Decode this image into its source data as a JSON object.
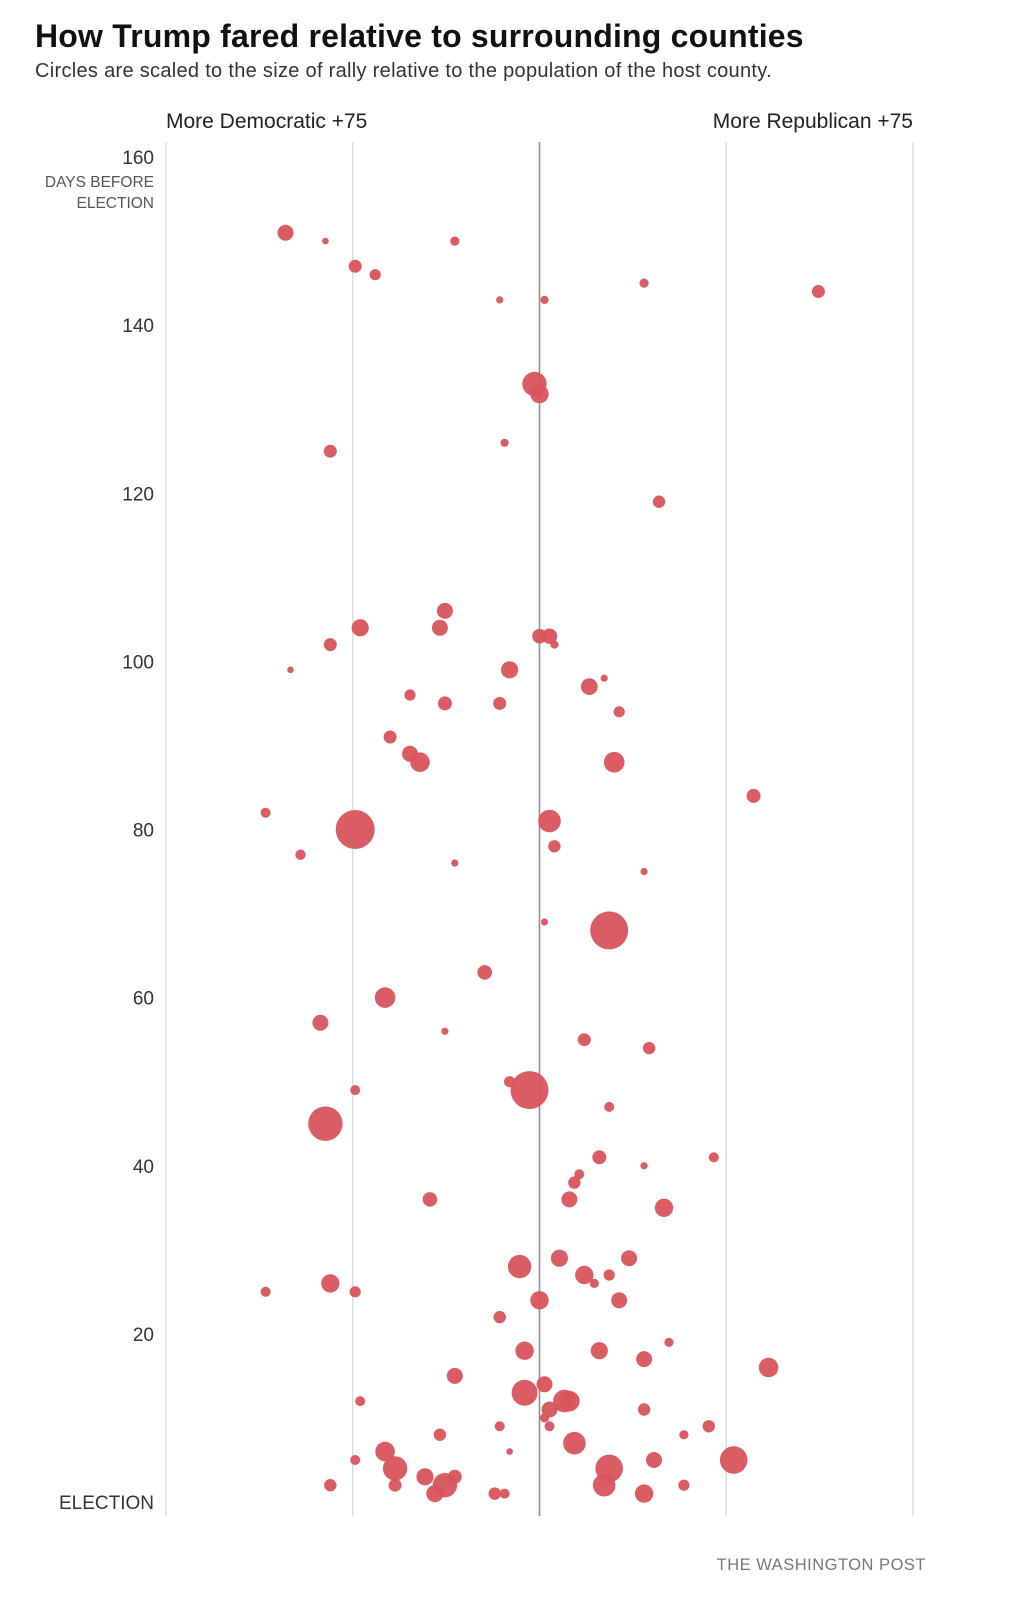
{
  "chart_data": {
    "type": "scatter",
    "title": "How Trump fared relative to surrounding counties",
    "subtitle": "Circles are scaled to the size of rally relative to the population of the host county.",
    "x_left_label": "More Democratic +75",
    "x_right_label": "More Republican +75",
    "xlim": [
      -75,
      75
    ],
    "x_gridlines": [
      -75,
      -37.5,
      0,
      37.5,
      75
    ],
    "ylim": [
      0,
      160
    ],
    "y_ticks": [
      {
        "value": 160,
        "label": "160"
      },
      {
        "value": 140,
        "label": "140"
      },
      {
        "value": 120,
        "label": "120"
      },
      {
        "value": 100,
        "label": "100"
      },
      {
        "value": 80,
        "label": "80"
      },
      {
        "value": 60,
        "label": "60"
      },
      {
        "value": 40,
        "label": "40"
      },
      {
        "value": 20,
        "label": "20"
      },
      {
        "value": 0,
        "label": "ELECTION"
      }
    ],
    "y_axis_caption": [
      "DAYS BEFORE",
      "ELECTION"
    ],
    "color": "#d9545c",
    "points": [
      {
        "x": -51,
        "y": 151,
        "s": 3
      },
      {
        "x": -43,
        "y": 150,
        "s": 0.5
      },
      {
        "x": -17,
        "y": 150,
        "s": 1
      },
      {
        "x": -37,
        "y": 147,
        "s": 2
      },
      {
        "x": -33,
        "y": 146,
        "s": 1.5
      },
      {
        "x": 21,
        "y": 145,
        "s": 1
      },
      {
        "x": 56,
        "y": 144,
        "s": 2
      },
      {
        "x": -8,
        "y": 143,
        "s": 0.6
      },
      {
        "x": 1,
        "y": 143,
        "s": 0.8
      },
      {
        "x": -1,
        "y": 133,
        "s": 7
      },
      {
        "x": 0,
        "y": 131.8,
        "s": 4
      },
      {
        "x": -7,
        "y": 126,
        "s": 0.8
      },
      {
        "x": -42,
        "y": 125,
        "s": 2
      },
      {
        "x": 24,
        "y": 119,
        "s": 1.8
      },
      {
        "x": -19,
        "y": 106,
        "s": 3
      },
      {
        "x": -36,
        "y": 104,
        "s": 3.5
      },
      {
        "x": -20,
        "y": 104,
        "s": 3
      },
      {
        "x": -42,
        "y": 102,
        "s": 2
      },
      {
        "x": 0,
        "y": 103,
        "s": 2.5
      },
      {
        "x": 2,
        "y": 103,
        "s": 2.8
      },
      {
        "x": 3,
        "y": 102,
        "s": 0.8
      },
      {
        "x": -6,
        "y": 99,
        "s": 3.5
      },
      {
        "x": -50,
        "y": 99,
        "s": 0.5
      },
      {
        "x": 13,
        "y": 98,
        "s": 0.6
      },
      {
        "x": 10,
        "y": 97,
        "s": 3.3
      },
      {
        "x": -26,
        "y": 96,
        "s": 1.5
      },
      {
        "x": -19,
        "y": 95,
        "s": 2.3
      },
      {
        "x": -8,
        "y": 95,
        "s": 2
      },
      {
        "x": 16,
        "y": 94,
        "s": 1.5
      },
      {
        "x": -30,
        "y": 91,
        "s": 2
      },
      {
        "x": -26,
        "y": 89,
        "s": 3
      },
      {
        "x": -24,
        "y": 88,
        "s": 4.5
      },
      {
        "x": 15,
        "y": 88,
        "s": 5
      },
      {
        "x": 43,
        "y": 84,
        "s": 2.3
      },
      {
        "x": -55,
        "y": 82,
        "s": 1.2
      },
      {
        "x": 2,
        "y": 81,
        "s": 6
      },
      {
        "x": -37,
        "y": 80,
        "s": 18
      },
      {
        "x": 3,
        "y": 78,
        "s": 1.8
      },
      {
        "x": -48,
        "y": 77,
        "s": 1.3
      },
      {
        "x": -17,
        "y": 76,
        "s": 0.6
      },
      {
        "x": 21,
        "y": 75,
        "s": 0.6
      },
      {
        "x": 1,
        "y": 69,
        "s": 0.6
      },
      {
        "x": 14,
        "y": 68,
        "s": 17
      },
      {
        "x": -11,
        "y": 63,
        "s": 2.5
      },
      {
        "x": -31,
        "y": 60,
        "s": 5
      },
      {
        "x": -44,
        "y": 57,
        "s": 3
      },
      {
        "x": -19,
        "y": 56,
        "s": 0.6
      },
      {
        "x": 9,
        "y": 55,
        "s": 2
      },
      {
        "x": 22,
        "y": 54,
        "s": 1.8
      },
      {
        "x": -6,
        "y": 50,
        "s": 1.5
      },
      {
        "x": -2,
        "y": 49,
        "s": 17
      },
      {
        "x": -37,
        "y": 49,
        "s": 1.2
      },
      {
        "x": 14,
        "y": 47,
        "s": 1.2
      },
      {
        "x": -43,
        "y": 45,
        "s": 14
      },
      {
        "x": 12,
        "y": 41,
        "s": 2.3
      },
      {
        "x": 21,
        "y": 40,
        "s": 0.6
      },
      {
        "x": 35,
        "y": 41,
        "s": 1.2
      },
      {
        "x": 8,
        "y": 39,
        "s": 1.2
      },
      {
        "x": 7,
        "y": 38,
        "s": 1.8
      },
      {
        "x": 6,
        "y": 36,
        "s": 3
      },
      {
        "x": -22,
        "y": 36,
        "s": 2.5
      },
      {
        "x": 25,
        "y": 35,
        "s": 4
      },
      {
        "x": 4,
        "y": 29,
        "s": 3.5
      },
      {
        "x": 18,
        "y": 29,
        "s": 3
      },
      {
        "x": -4,
        "y": 28,
        "s": 6.5
      },
      {
        "x": 9,
        "y": 27,
        "s": 4
      },
      {
        "x": 14,
        "y": 27,
        "s": 1.5
      },
      {
        "x": 11,
        "y": 26,
        "s": 1
      },
      {
        "x": -42,
        "y": 26,
        "s": 4
      },
      {
        "x": -55,
        "y": 25,
        "s": 1.2
      },
      {
        "x": -37,
        "y": 25,
        "s": 1.5
      },
      {
        "x": 0,
        "y": 24,
        "s": 4
      },
      {
        "x": 16,
        "y": 24,
        "s": 3
      },
      {
        "x": -8,
        "y": 22,
        "s": 1.8
      },
      {
        "x": 26,
        "y": 19,
        "s": 1
      },
      {
        "x": -3,
        "y": 18,
        "s": 4
      },
      {
        "x": 12,
        "y": 18,
        "s": 3.5
      },
      {
        "x": 21,
        "y": 17,
        "s": 3
      },
      {
        "x": 46,
        "y": 16,
        "s": 4.5
      },
      {
        "x": -17,
        "y": 15,
        "s": 3
      },
      {
        "x": 1,
        "y": 14,
        "s": 3
      },
      {
        "x": -3,
        "y": 13,
        "s": 8
      },
      {
        "x": -36,
        "y": 12,
        "s": 1.2
      },
      {
        "x": 5,
        "y": 12,
        "s": 6
      },
      {
        "x": 6,
        "y": 12,
        "s": 5
      },
      {
        "x": 2,
        "y": 11,
        "s": 3
      },
      {
        "x": 21,
        "y": 11,
        "s": 1.8
      },
      {
        "x": 1,
        "y": 10,
        "s": 1
      },
      {
        "x": -8,
        "y": 9,
        "s": 1.2
      },
      {
        "x": 2,
        "y": 9,
        "s": 1.2
      },
      {
        "x": 34,
        "y": 9,
        "s": 1.8
      },
      {
        "x": -20,
        "y": 8,
        "s": 1.8
      },
      {
        "x": 29,
        "y": 8,
        "s": 1
      },
      {
        "x": 7,
        "y": 7,
        "s": 6
      },
      {
        "x": -31,
        "y": 6,
        "s": 4.5
      },
      {
        "x": -6,
        "y": 6,
        "s": 0.5
      },
      {
        "x": -37,
        "y": 5,
        "s": 1.2
      },
      {
        "x": 23,
        "y": 5,
        "s": 3
      },
      {
        "x": 39,
        "y": 5,
        "s": 9
      },
      {
        "x": -29,
        "y": 4,
        "s": 7
      },
      {
        "x": 14,
        "y": 4,
        "s": 9
      },
      {
        "x": -23,
        "y": 3,
        "s": 3.5
      },
      {
        "x": -17,
        "y": 3,
        "s": 2.3
      },
      {
        "x": -19,
        "y": 2,
        "s": 7
      },
      {
        "x": -42,
        "y": 2,
        "s": 1.8
      },
      {
        "x": -29,
        "y": 2,
        "s": 2
      },
      {
        "x": 13,
        "y": 2,
        "s": 6
      },
      {
        "x": 29,
        "y": 2,
        "s": 1.5
      },
      {
        "x": -21,
        "y": 1,
        "s": 3.5
      },
      {
        "x": -9,
        "y": 1,
        "s": 1.8
      },
      {
        "x": -7,
        "y": 1,
        "s": 1.2
      },
      {
        "x": 21,
        "y": 1,
        "s": 4
      }
    ]
  },
  "credit": "THE WASHINGTON POST"
}
